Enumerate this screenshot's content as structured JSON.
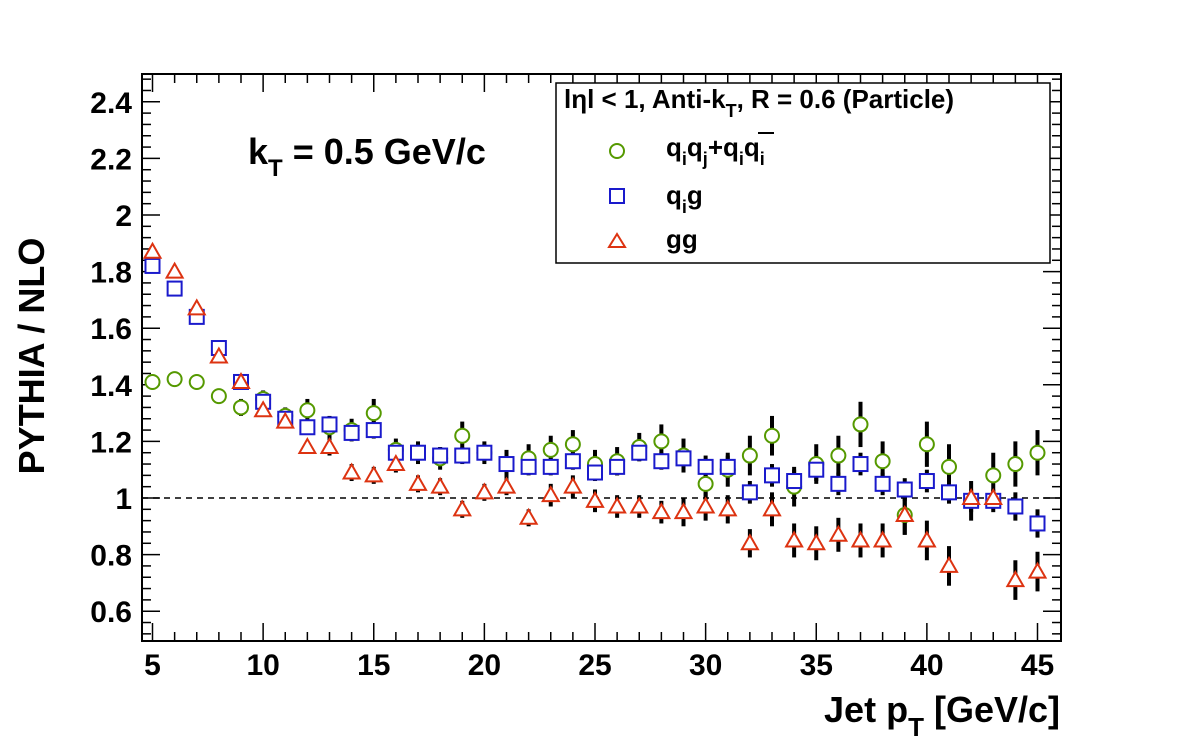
{
  "chart_data": {
    "type": "scatter",
    "title": "",
    "xlabel": {
      "main": "Jet p",
      "sub": "T",
      "tail": " [GeV/c]"
    },
    "ylabel": "PYTHIA / NLO",
    "xlim": [
      4.5,
      46
    ],
    "ylim": [
      0.5,
      2.5
    ],
    "x_ticks": [
      5,
      10,
      15,
      20,
      25,
      30,
      35,
      40,
      45
    ],
    "y_ticks": [
      0.6,
      0.8,
      1,
      1.2,
      1.4,
      1.6,
      1.8,
      2,
      2.2,
      2.4
    ],
    "x_tick_labels": [
      "5",
      "10",
      "15",
      "20",
      "25",
      "30",
      "35",
      "40",
      "45"
    ],
    "y_tick_labels": [
      "0.6",
      "0.8",
      "1",
      "1.2",
      "1.4",
      "1.6",
      "1.8",
      "2",
      "2.2",
      "2.4"
    ],
    "reference_line": 1.0,
    "annotation": {
      "main": "k",
      "sub": "T",
      "tail": " = 0.5 GeV/c"
    },
    "legend": {
      "header": {
        "a": "lηl < 1, Anti-k",
        "sub": "T",
        "b": ", R = 0.6 (Particle)"
      },
      "entries": [
        {
          "label": "qq+qq̄",
          "marker": "circle",
          "color": "#559900"
        },
        {
          "label": "qg",
          "marker": "square",
          "color": "#1a1acc"
        },
        {
          "label": "gg",
          "marker": "triangle",
          "color": "#dd3311"
        }
      ]
    },
    "x": [
      5,
      6,
      7,
      8,
      9,
      10,
      11,
      12,
      13,
      14,
      15,
      16,
      17,
      18,
      19,
      20,
      21,
      22,
      23,
      24,
      25,
      26,
      27,
      28,
      29,
      30,
      31,
      32,
      33,
      34,
      35,
      36,
      37,
      38,
      39,
      40,
      41,
      42,
      43,
      44,
      45
    ],
    "series": [
      {
        "marker": "circle",
        "color": "#559900",
        "values": [
          1.41,
          1.42,
          1.41,
          1.36,
          1.32,
          1.35,
          1.29,
          1.31,
          1.25,
          1.24,
          1.3,
          1.17,
          1.16,
          1.14,
          1.22,
          1.16,
          1.12,
          1.14,
          1.17,
          1.19,
          1.12,
          1.13,
          1.18,
          1.2,
          1.15,
          1.05,
          1.1,
          1.15,
          1.22,
          1.04,
          1.12,
          1.15,
          1.26,
          1.13,
          0.94,
          1.19,
          1.11,
          0.99,
          1.08,
          1.12,
          1.16
        ],
        "errors": [
          0.02,
          0.02,
          0.02,
          0.02,
          0.03,
          0.03,
          0.03,
          0.04,
          0.04,
          0.04,
          0.05,
          0.04,
          0.04,
          0.04,
          0.05,
          0.04,
          0.05,
          0.05,
          0.05,
          0.05,
          0.05,
          0.05,
          0.05,
          0.06,
          0.06,
          0.06,
          0.06,
          0.07,
          0.07,
          0.07,
          0.07,
          0.07,
          0.08,
          0.07,
          0.07,
          0.08,
          0.08,
          0.07,
          0.08,
          0.08,
          0.08
        ]
      },
      {
        "marker": "square",
        "color": "#1a1acc",
        "values": [
          1.82,
          1.74,
          1.64,
          1.53,
          1.41,
          1.34,
          1.28,
          1.25,
          1.26,
          1.23,
          1.24,
          1.16,
          1.16,
          1.15,
          1.15,
          1.16,
          1.12,
          1.11,
          1.11,
          1.13,
          1.09,
          1.11,
          1.16,
          1.13,
          1.14,
          1.11,
          1.11,
          1.02,
          1.08,
          1.06,
          1.1,
          1.05,
          1.12,
          1.05,
          1.03,
          1.06,
          1.02,
          0.99,
          0.99,
          0.97,
          0.91
        ],
        "errors": [
          0.02,
          0.02,
          0.02,
          0.02,
          0.02,
          0.02,
          0.02,
          0.02,
          0.02,
          0.02,
          0.03,
          0.03,
          0.03,
          0.03,
          0.03,
          0.03,
          0.03,
          0.03,
          0.03,
          0.03,
          0.03,
          0.03,
          0.03,
          0.03,
          0.03,
          0.04,
          0.04,
          0.04,
          0.04,
          0.04,
          0.04,
          0.04,
          0.04,
          0.04,
          0.04,
          0.04,
          0.04,
          0.04,
          0.04,
          0.05,
          0.05
        ]
      },
      {
        "marker": "triangle",
        "color": "#dd3311",
        "values": [
          1.87,
          1.8,
          1.67,
          1.5,
          1.41,
          1.31,
          1.27,
          1.18,
          1.18,
          1.09,
          1.08,
          1.12,
          1.05,
          1.04,
          0.96,
          1.02,
          1.04,
          0.93,
          1.01,
          1.04,
          0.99,
          0.97,
          0.97,
          0.95,
          0.95,
          0.97,
          0.96,
          0.84,
          0.96,
          0.85,
          0.84,
          0.87,
          0.85,
          0.85,
          0.94,
          0.85,
          0.76,
          1.0,
          1.0,
          0.71,
          0.74
        ],
        "errors": [
          0.02,
          0.02,
          0.02,
          0.02,
          0.02,
          0.02,
          0.02,
          0.02,
          0.03,
          0.03,
          0.03,
          0.03,
          0.03,
          0.03,
          0.03,
          0.03,
          0.03,
          0.03,
          0.04,
          0.04,
          0.04,
          0.04,
          0.04,
          0.04,
          0.05,
          0.05,
          0.05,
          0.05,
          0.06,
          0.06,
          0.06,
          0.06,
          0.06,
          0.06,
          0.07,
          0.07,
          0.07,
          0.0,
          0.0,
          0.07,
          0.07
        ]
      }
    ]
  }
}
